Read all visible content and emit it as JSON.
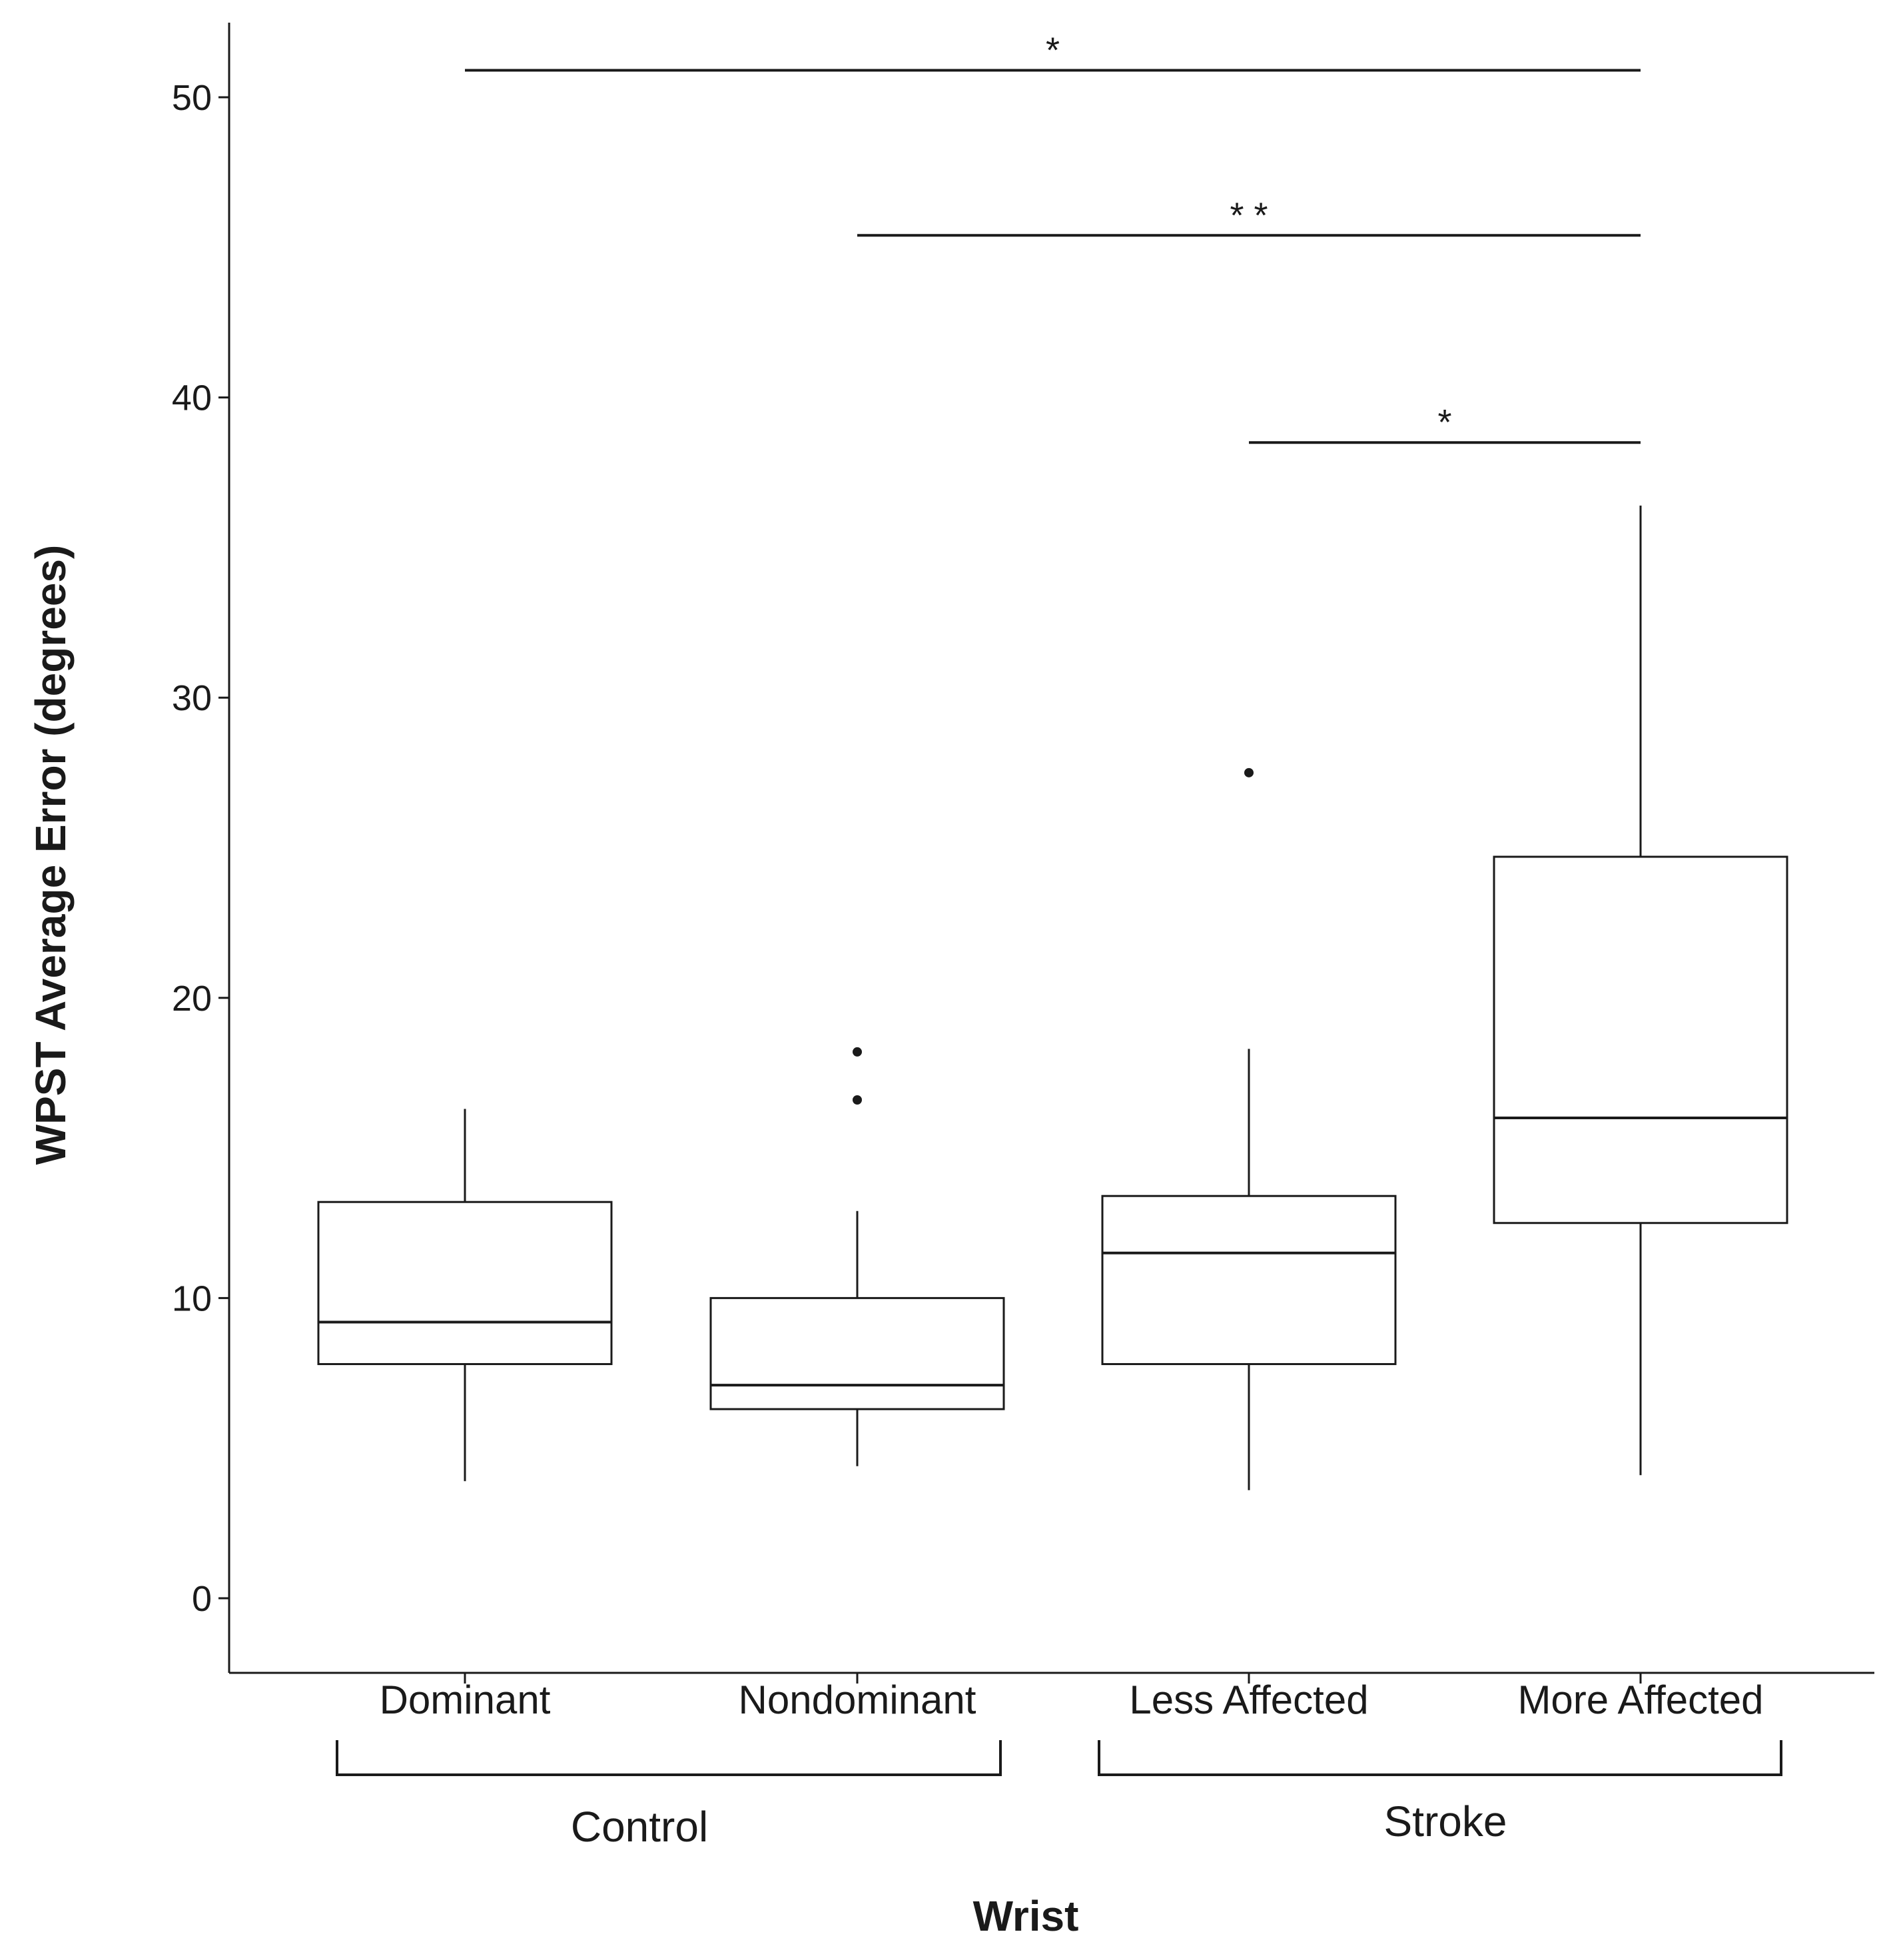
{
  "chart_data": {
    "type": "boxplot",
    "title": "",
    "xlabel": "Wrist",
    "ylabel": "WPST Average Error (degrees)",
    "ylim": [
      -2.5,
      52.5
    ],
    "yticks": [
      0,
      10,
      20,
      30,
      40,
      50
    ],
    "categories": [
      "Dominant",
      "Nondominant",
      "Less Affected",
      "More Affected"
    ],
    "boxes": [
      {
        "category": "Dominant",
        "whisker_low": 3.9,
        "q1": 7.8,
        "median": 9.2,
        "q3": 13.2,
        "whisker_high": 16.3,
        "outliers": []
      },
      {
        "category": "Nondominant",
        "whisker_low": 4.4,
        "q1": 6.3,
        "median": 7.1,
        "q3": 10.0,
        "whisker_high": 12.9,
        "outliers": [
          16.6,
          18.2
        ]
      },
      {
        "category": "Less Affected",
        "whisker_low": 3.6,
        "q1": 7.8,
        "median": 11.5,
        "q3": 13.4,
        "whisker_high": 18.3,
        "outliers": [
          27.5
        ]
      },
      {
        "category": "More Affected",
        "whisker_low": 4.1,
        "q1": 12.5,
        "median": 16.0,
        "q3": 24.7,
        "whisker_high": 36.4,
        "outliers": []
      }
    ],
    "groups": [
      {
        "label": "Control",
        "categories": [
          "Dominant",
          "Nondominant"
        ]
      },
      {
        "label": "Stroke",
        "categories": [
          "Less Affected",
          "More Affected"
        ]
      }
    ],
    "significance": [
      {
        "from": "Dominant",
        "to": "More Affected",
        "y": 50.9,
        "label": "*"
      },
      {
        "from": "Nondominant",
        "to": "More Affected",
        "y": 45.4,
        "label": "* *"
      },
      {
        "from": "Less Affected",
        "to": "More Affected",
        "y": 38.5,
        "label": "*"
      }
    ],
    "grid": false,
    "legend": "none"
  }
}
